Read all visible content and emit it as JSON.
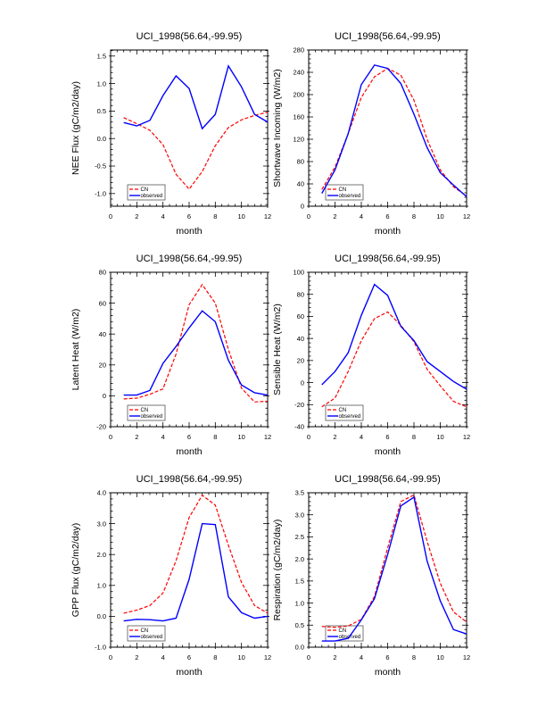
{
  "chart_data": [
    {
      "type": "line",
      "title": "UCI_1998(56.64,-99.95)",
      "xlabel": "month",
      "ylabel": "NEE Flux (gC/m2/day)",
      "xlim": [
        0,
        12
      ],
      "ylim": [
        -1.23,
        1.61
      ],
      "xticks": [
        0,
        2,
        4,
        6,
        8,
        10,
        12
      ],
      "yticks": [
        -1.0,
        -0.5,
        0.0,
        0.5,
        1.0,
        1.5
      ],
      "ytick_labels": [
        "-1.0",
        "-0.5",
        "0.0",
        "0.5",
        "1.0",
        "1.5"
      ],
      "legend_position": "bottom-left",
      "x": [
        1,
        2,
        3,
        4,
        5,
        6,
        7,
        8,
        9,
        10,
        11,
        12
      ],
      "series": [
        {
          "name": "CN",
          "color": "#ff0000",
          "style": "dashed",
          "values": [
            0.38,
            0.27,
            0.15,
            -0.11,
            -0.65,
            -0.92,
            -0.6,
            -0.13,
            0.2,
            0.34,
            0.42,
            0.48
          ]
        },
        {
          "name": "observed",
          "color": "#0000ff",
          "style": "solid",
          "values": [
            0.29,
            0.23,
            0.33,
            0.78,
            1.14,
            0.91,
            0.18,
            0.44,
            1.32,
            0.94,
            0.44,
            0.3
          ]
        }
      ]
    },
    {
      "type": "line",
      "title": "UCI_1998(56.64,-99.95)",
      "xlabel": "month",
      "ylabel": "Shortwave Incoming (W/m2)",
      "xlim": [
        0,
        12
      ],
      "ylim": [
        0,
        280
      ],
      "xticks": [
        0,
        2,
        4,
        6,
        8,
        10,
        12
      ],
      "yticks": [
        0,
        40,
        80,
        120,
        160,
        200,
        240,
        280
      ],
      "ytick_labels": [
        "0",
        "40",
        "80",
        "120",
        "160",
        "200",
        "240",
        "280"
      ],
      "legend_position": "bottom-left",
      "x": [
        1,
        2,
        3,
        4,
        5,
        6,
        7,
        8,
        9,
        10,
        11,
        12
      ],
      "series": [
        {
          "name": "CN",
          "color": "#ff0000",
          "style": "dashed",
          "values": [
            30,
            70,
            130,
            195,
            232,
            247,
            235,
            190,
            120,
            65,
            35,
            18
          ]
        },
        {
          "name": "observed",
          "color": "#0000ff",
          "style": "solid",
          "values": [
            23,
            65,
            130,
            218,
            253,
            247,
            220,
            165,
            105,
            60,
            38,
            17
          ]
        }
      ]
    },
    {
      "type": "line",
      "title": "UCI_1998(56.64,-99.95)",
      "xlabel": "month",
      "ylabel": "Latent Heat (W/m2)",
      "xlim": [
        0,
        12
      ],
      "ylim": [
        -20,
        80
      ],
      "xticks": [
        0,
        2,
        4,
        6,
        8,
        10,
        12
      ],
      "yticks": [
        -20,
        0,
        20,
        40,
        60,
        80
      ],
      "ytick_labels": [
        "-20",
        "0",
        "20",
        "40",
        "60",
        "80"
      ],
      "legend_position": "bottom-left",
      "x": [
        1,
        2,
        3,
        4,
        5,
        6,
        7,
        8,
        9,
        10,
        11,
        12
      ],
      "series": [
        {
          "name": "CN",
          "color": "#ff0000",
          "style": "dashed",
          "values": [
            -2,
            -1.5,
            1,
            4.5,
            27,
            59,
            72,
            60,
            30,
            5,
            -4,
            -3.5
          ]
        },
        {
          "name": "observed",
          "color": "#0000ff",
          "style": "solid",
          "values": [
            0.5,
            0.5,
            3.5,
            21,
            32,
            44,
            55,
            48,
            23,
            7,
            2,
            0.5
          ]
        }
      ]
    },
    {
      "type": "line",
      "title": "UCI_1998(56.64,-99.95)",
      "xlabel": "month",
      "ylabel": "Sensible Heat (W/m2)",
      "xlim": [
        0,
        12
      ],
      "ylim": [
        -40,
        100
      ],
      "xticks": [
        0,
        2,
        4,
        6,
        8,
        10,
        12
      ],
      "yticks": [
        -40,
        -20,
        0,
        20,
        40,
        60,
        80,
        100
      ],
      "ytick_labels": [
        "-40",
        "-20",
        "0",
        "20",
        "40",
        "60",
        "80",
        "100"
      ],
      "legend_position": "bottom-left",
      "x": [
        1,
        2,
        3,
        4,
        5,
        6,
        7,
        8,
        9,
        10,
        11,
        12
      ],
      "series": [
        {
          "name": "CN",
          "color": "#ff0000",
          "style": "dashed",
          "values": [
            -22,
            -14,
            10,
            38,
            58,
            64,
            52,
            37,
            12,
            -3,
            -17,
            -22
          ]
        },
        {
          "name": "observed",
          "color": "#0000ff",
          "style": "solid",
          "values": [
            -2,
            10,
            27,
            61,
            89,
            79,
            51,
            38,
            19,
            10,
            1,
            -6
          ]
        }
      ]
    },
    {
      "type": "line",
      "title": "UCI_1998(56.64,-99.95)",
      "xlabel": "month",
      "ylabel": "GPP Flux (gC/m2/day)",
      "xlim": [
        0,
        12
      ],
      "ylim": [
        -1.0,
        4.0
      ],
      "xticks": [
        0,
        2,
        4,
        6,
        8,
        10,
        12
      ],
      "yticks": [
        -1.0,
        0.0,
        1.0,
        2.0,
        3.0,
        4.0
      ],
      "ytick_labels": [
        "-1.0",
        "0.0",
        "1.0",
        "2.0",
        "3.0",
        "4.0"
      ],
      "legend_position": "bottom-left",
      "x": [
        1,
        2,
        3,
        4,
        5,
        6,
        7,
        8,
        9,
        10,
        11,
        12
      ],
      "series": [
        {
          "name": "CN",
          "color": "#ff0000",
          "style": "dashed",
          "values": [
            0.1,
            0.2,
            0.35,
            0.75,
            1.8,
            3.2,
            3.92,
            3.6,
            2.3,
            1.1,
            0.35,
            0.1
          ]
        },
        {
          "name": "observed",
          "color": "#0000ff",
          "style": "solid",
          "values": [
            -0.15,
            -0.1,
            -0.11,
            -0.15,
            -0.06,
            1.2,
            3.0,
            2.97,
            0.63,
            0.12,
            -0.06,
            0.0
          ]
        }
      ]
    },
    {
      "type": "line",
      "title": "UCI_1998(56.64,-99.95)",
      "xlabel": "month",
      "ylabel": "Respiration (gC/m2/day)",
      "xlim": [
        0,
        12
      ],
      "ylim": [
        0.0,
        3.5
      ],
      "xticks": [
        0,
        2,
        4,
        6,
        8,
        10,
        12
      ],
      "yticks": [
        0.0,
        0.5,
        1.0,
        1.5,
        2.0,
        2.5,
        3.0,
        3.5
      ],
      "ytick_labels": [
        "0.0",
        "0.5",
        "1.0",
        "1.5",
        "2.0",
        "2.5",
        "3.0",
        "3.5"
      ],
      "legend_position": "bottom-left",
      "x": [
        1,
        2,
        3,
        4,
        5,
        6,
        7,
        8,
        9,
        10,
        11,
        12
      ],
      "series": [
        {
          "name": "CN",
          "color": "#ff0000",
          "style": "dashed",
          "values": [
            0.47,
            0.45,
            0.48,
            0.63,
            1.15,
            2.25,
            3.3,
            3.45,
            2.4,
            1.45,
            0.8,
            0.57
          ]
        },
        {
          "name": "observed",
          "color": "#0000ff",
          "style": "solid",
          "values": [
            0.14,
            0.14,
            0.2,
            0.62,
            1.1,
            2.1,
            3.2,
            3.4,
            1.95,
            1.05,
            0.4,
            0.3
          ]
        }
      ]
    }
  ]
}
